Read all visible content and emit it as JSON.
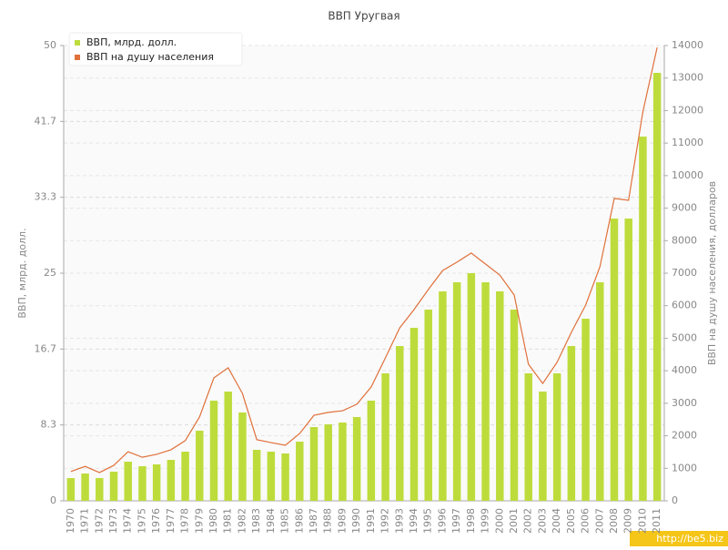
{
  "chart_data": {
    "type": "bar",
    "title": "ВВП Уругвая",
    "y_label": "ВВП, млрд. долл.",
    "y2_label": "ВВП на душу населения, долларов",
    "categories": [
      "1970",
      "1971",
      "1972",
      "1973",
      "1974",
      "1975",
      "1976",
      "1977",
      "1978",
      "1979",
      "1980",
      "1981",
      "1982",
      "1983",
      "1984",
      "1985",
      "1986",
      "1987",
      "1988",
      "1989",
      "1990",
      "1991",
      "1992",
      "1993",
      "1994",
      "1995",
      "1996",
      "1997",
      "1998",
      "1999",
      "2000",
      "2001",
      "2002",
      "2003",
      "2004",
      "2005",
      "2006",
      "2007",
      "2008",
      "2009",
      "2010",
      "2011"
    ],
    "series": [
      {
        "name": "ВВП, млрд. долл.",
        "type": "bar",
        "color": "#bddc3c",
        "values": [
          2.5,
          3.0,
          2.5,
          3.2,
          4.3,
          3.8,
          4.0,
          4.5,
          5.4,
          7.7,
          11.0,
          12.0,
          9.7,
          5.6,
          5.4,
          5.2,
          6.5,
          8.1,
          8.4,
          8.6,
          9.2,
          11.0,
          14.0,
          17.0,
          19.0,
          21.0,
          23.0,
          24.0,
          25.0,
          24.0,
          23.0,
          21.0,
          14.0,
          12.0,
          14.0,
          17.0,
          20.0,
          24.0,
          31.0,
          31.0,
          40.0,
          47.0
        ]
      },
      {
        "name": "ВВП на душу населения",
        "type": "line",
        "axis": "y2",
        "color": "#e0703a",
        "values": [
          900,
          1060,
          870,
          1090,
          1510,
          1340,
          1430,
          1570,
          1850,
          2580,
          3780,
          4090,
          3300,
          1880,
          1790,
          1710,
          2070,
          2630,
          2720,
          2770,
          2970,
          3500,
          4400,
          5320,
          5880,
          6500,
          7080,
          7340,
          7620,
          7280,
          6940,
          6330,
          4200,
          3610,
          4260,
          5180,
          6020,
          7200,
          9300,
          9240,
          11960,
          13940
        ]
      }
    ],
    "ylim": [
      0,
      50
    ],
    "yticks": [
      0,
      {
        "value": 8.333,
        "label": "8.3"
      },
      {
        "value": 16.667,
        "label": "16.7"
      },
      25,
      {
        "value": 33.333,
        "label": "33.3"
      },
      {
        "value": 41.667,
        "label": "41.7"
      },
      50
    ],
    "y2lim": [
      0,
      14000
    ],
    "y2ticks": [
      0,
      1000,
      2000,
      3000,
      4000,
      5000,
      6000,
      7000,
      8000,
      9000,
      10000,
      11000,
      12000,
      13000,
      14000
    ],
    "grid": true,
    "legend": "top-left",
    "watermark": "http://be5.biz"
  }
}
